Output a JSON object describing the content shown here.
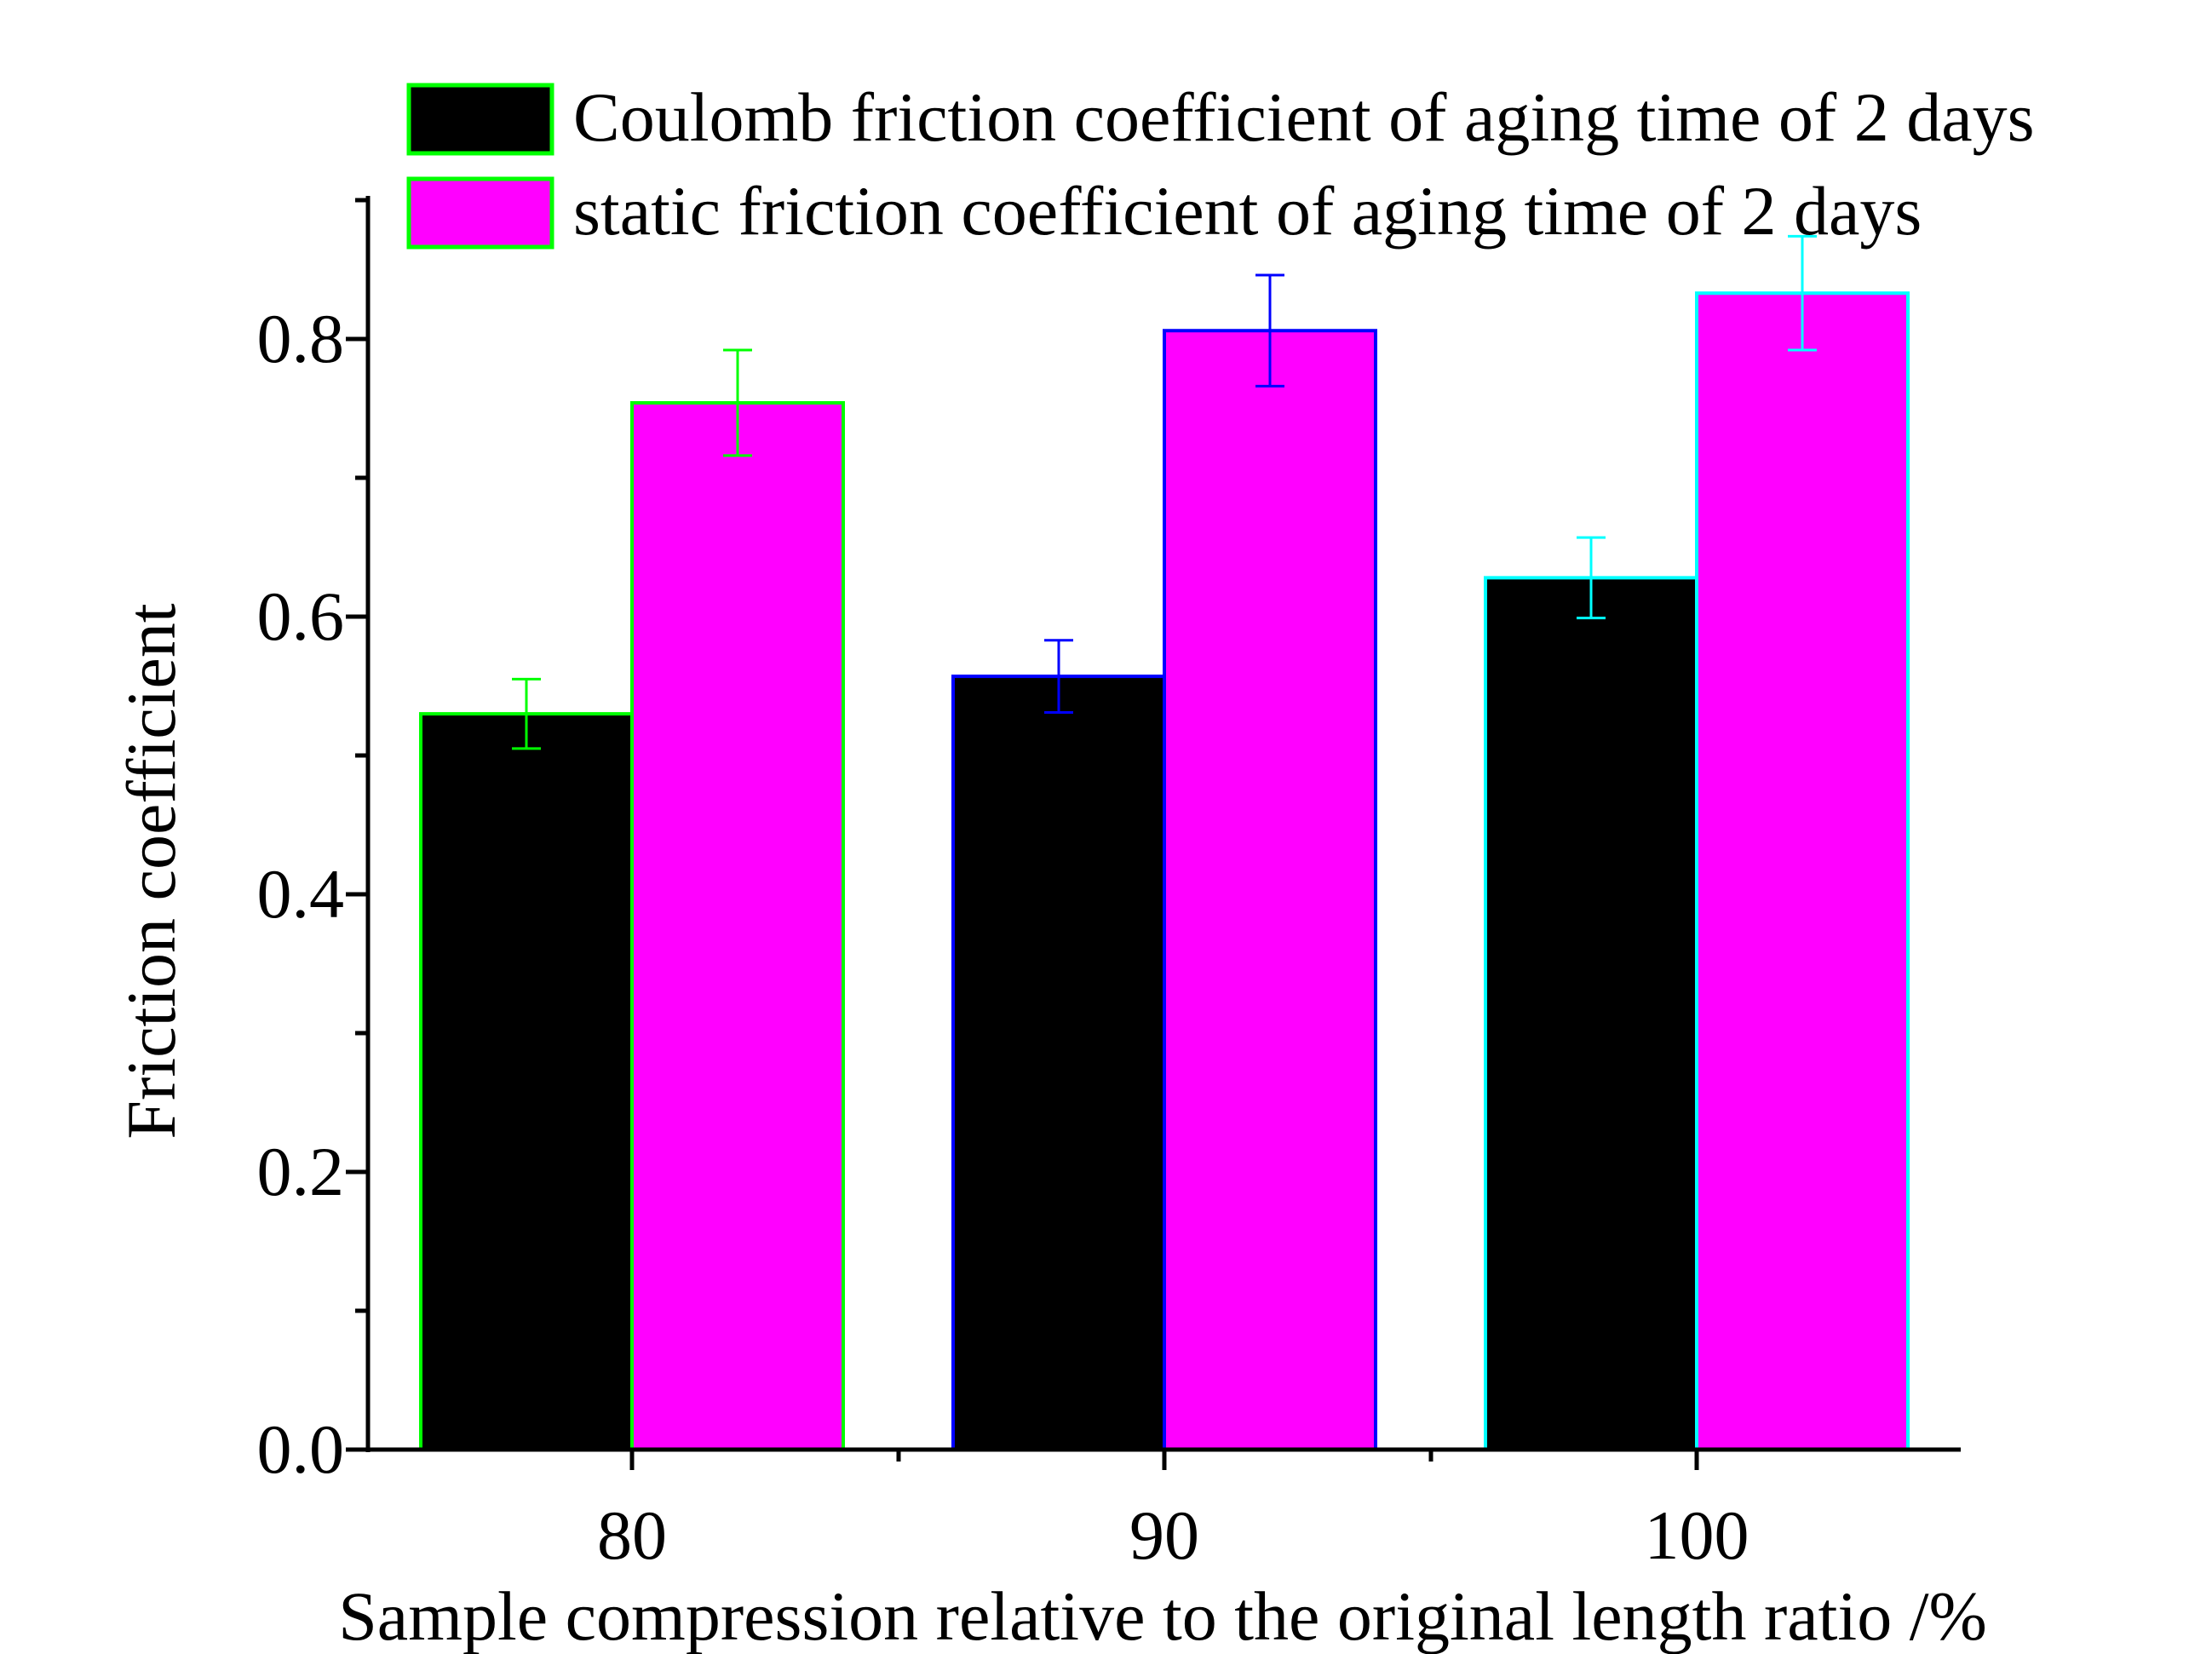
{
  "chart_data": {
    "type": "bar",
    "title": "",
    "xlabel": "Sample compression relative to the original length ratio /%",
    "ylabel": "Friction coefficient",
    "categories": [
      "80",
      "90",
      "100"
    ],
    "ylim": [
      0,
      0.9
    ],
    "yticks": [
      "0.0",
      "0.2",
      "0.4",
      "0.6",
      "0.8"
    ],
    "legend_position": "top",
    "series": [
      {
        "name": "Coulomb friction coefficient of aging time of 2 days",
        "color": "#000000",
        "values": [
          0.53,
          0.557,
          0.628
        ],
        "errors": [
          0.025,
          0.026,
          0.029
        ]
      },
      {
        "name": "static friction coefficient of aging time of 2 days",
        "color": "#ff00ff",
        "values": [
          0.754,
          0.806,
          0.833
        ],
        "errors": [
          0.038,
          0.04,
          0.041
        ]
      }
    ],
    "group_edge_colors": [
      "#00ff00",
      "#0000ff",
      "#00ffff"
    ],
    "legend_edge_color": "#00ff00"
  }
}
